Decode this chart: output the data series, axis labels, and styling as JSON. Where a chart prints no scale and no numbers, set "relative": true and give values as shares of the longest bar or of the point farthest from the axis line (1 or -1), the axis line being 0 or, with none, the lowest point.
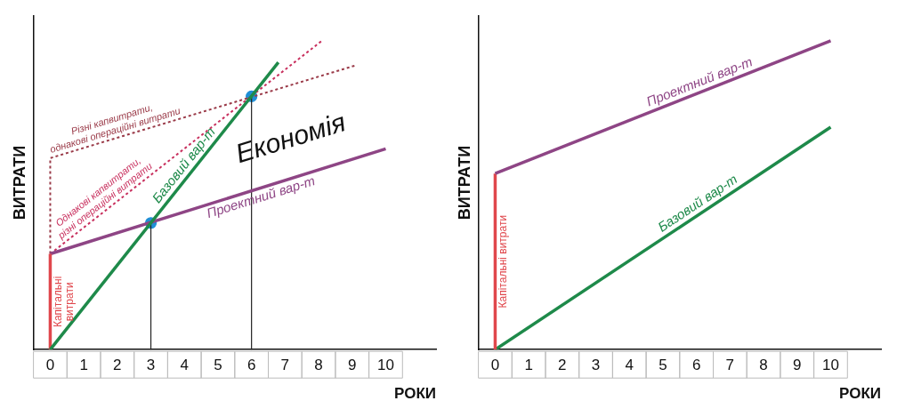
{
  "chart_data": [
    {
      "type": "line",
      "relative": true,
      "xlabel": "РОКИ",
      "ylabel": "ВИТРАТИ",
      "xlim": [
        -0.5,
        11.5
      ],
      "xticks": [
        0,
        1,
        2,
        3,
        4,
        5,
        6,
        7,
        8,
        9,
        10
      ],
      "grid": false,
      "legend": false,
      "marker": "none",
      "annotations": [
        "Економія"
      ],
      "series": [
        {
          "name": "Базовий вар-т",
          "color": "#1e8a4a",
          "x": [
            0,
            6.8
          ],
          "values": [
            0,
            0.93
          ]
        },
        {
          "name": "Капітальні витрати",
          "color": "#e0474c",
          "x": [
            0,
            0
          ],
          "values": [
            0,
            0.31
          ]
        },
        {
          "color": "#222222",
          "x": [
            3,
            3
          ],
          "values": [
            0.41,
            0
          ]
        },
        {
          "name": "Проектний вар-т",
          "color": "#8e4585",
          "x": [
            0,
            10
          ],
          "values": [
            0.31,
            0.65
          ]
        },
        {
          "name": "Однакові капвитрати, різні операційні витрати",
          "color": "#c8305e",
          "line_style": "dotted",
          "x": [
            0,
            8.1
          ],
          "values": [
            0.31,
            1
          ]
        },
        {
          "color": "#222222",
          "x": [
            6,
            6
          ],
          "values": [
            0.82,
            0
          ]
        },
        {
          "name": "Різні капвитрати, однакові операційні витрати",
          "color": "#9a3a48",
          "line_style": "dotted",
          "x": [
            0,
            0,
            9.1
          ],
          "values": [
            0.31,
            0.62,
            0.92
          ]
        },
        {
          "type": "scatter",
          "marker": "circle",
          "color": "#1f8fd6",
          "x": [
            3,
            6
          ],
          "values": [
            0.41,
            0.82
          ]
        }
      ]
    },
    {
      "type": "line",
      "relative": true,
      "xlabel": "РОКИ",
      "ylabel": "ВИТРАТИ",
      "xlim": [
        -0.5,
        11.5
      ],
      "xticks": [
        0,
        1,
        2,
        3,
        4,
        5,
        6,
        7,
        8,
        9,
        10
      ],
      "grid": false,
      "legend": false,
      "marker": "none",
      "series": [
        {
          "name": "Проектний вар-т",
          "color": "#8e4585",
          "x": [
            0,
            10
          ],
          "values": [
            0.57,
            1
          ]
        },
        {
          "name": "Капітальні витрати",
          "color": "#e0474c",
          "x": [
            0,
            0
          ],
          "values": [
            0,
            0.57
          ]
        },
        {
          "name": "Базовий вар-т",
          "color": "#1e8a4a",
          "x": [
            0,
            10
          ],
          "values": [
            0,
            0.72
          ]
        }
      ]
    }
  ]
}
